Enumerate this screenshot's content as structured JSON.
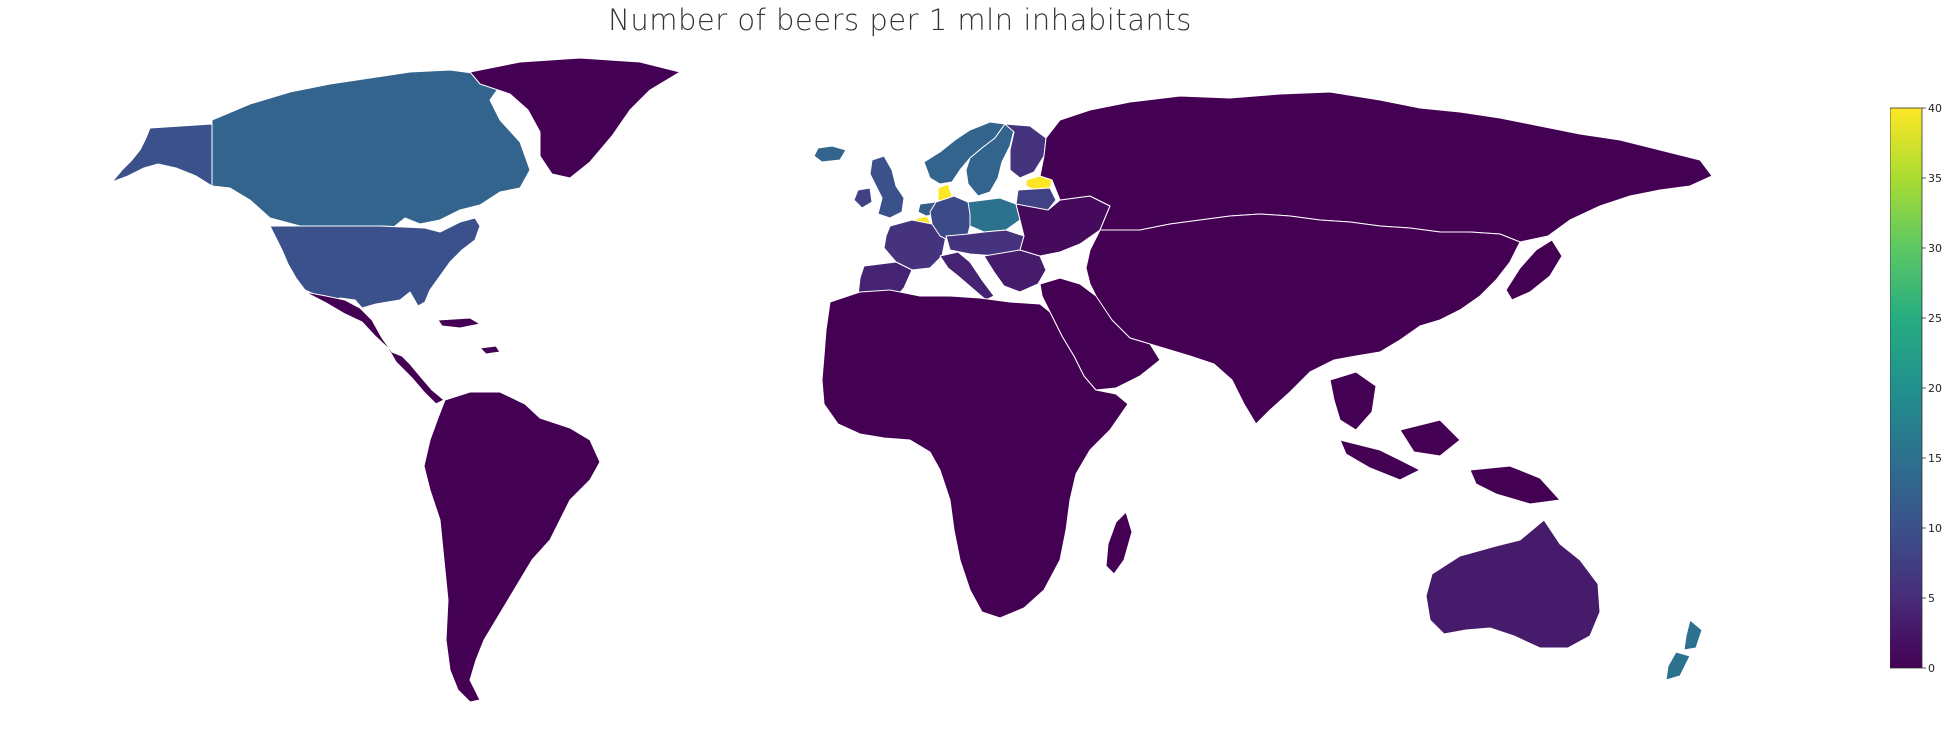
{
  "title": "Number of beers per 1 mln inhabitants",
  "colormap": {
    "name": "viridis",
    "stops": [
      "#440154",
      "#472c7a",
      "#3b518b",
      "#2c718e",
      "#21908d",
      "#27ad81",
      "#5cc863",
      "#aadc32",
      "#fde725"
    ]
  },
  "colorbar": {
    "min": 0,
    "max": 40,
    "ticks": [
      "0",
      "5",
      "10",
      "15",
      "20",
      "25",
      "30",
      "35",
      "40"
    ]
  },
  "border_color": "#ffffff",
  "chart_data": {
    "type": "choropleth",
    "title": "Number of beers per 1 mln inhabitants",
    "value_range": [
      0,
      40
    ],
    "regions": [
      {
        "name": "Alaska",
        "value": 10
      },
      {
        "name": "Canada",
        "value": 13
      },
      {
        "name": "United States",
        "value": 10
      },
      {
        "name": "Greenland",
        "value": 0
      },
      {
        "name": "Iceland",
        "value": 13
      },
      {
        "name": "Mexico & Central America",
        "value": 0
      },
      {
        "name": "Caribbean",
        "value": 0
      },
      {
        "name": "South America",
        "value": 0
      },
      {
        "name": "Norway",
        "value": 13
      },
      {
        "name": "Sweden",
        "value": 13
      },
      {
        "name": "Finland",
        "value": 6
      },
      {
        "name": "Estonia",
        "value": 40
      },
      {
        "name": "Latvia & Lithuania",
        "value": 8
      },
      {
        "name": "Denmark",
        "value": 40
      },
      {
        "name": "Belgium",
        "value": 40
      },
      {
        "name": "Netherlands",
        "value": 12
      },
      {
        "name": "United Kingdom",
        "value": 10
      },
      {
        "name": "Ireland",
        "value": 8
      },
      {
        "name": "France",
        "value": 6
      },
      {
        "name": "Iberia",
        "value": 4
      },
      {
        "name": "Germany",
        "value": 9
      },
      {
        "name": "Poland",
        "value": 15
      },
      {
        "name": "Central Europe",
        "value": 6
      },
      {
        "name": "Italy",
        "value": 4
      },
      {
        "name": "Balkans",
        "value": 3
      },
      {
        "name": "Eastern Europe",
        "value": 1
      },
      {
        "name": "Russia",
        "value": 0
      },
      {
        "name": "Asia",
        "value": 0
      },
      {
        "name": "Africa",
        "value": 0
      },
      {
        "name": "Middle East",
        "value": 0
      },
      {
        "name": "Southeast Asia",
        "value": 0
      },
      {
        "name": "Japan",
        "value": 0
      },
      {
        "name": "Australia",
        "value": 3
      },
      {
        "name": "New Zealand",
        "value": 15
      },
      {
        "name": "Madagascar",
        "value": 0
      }
    ]
  }
}
